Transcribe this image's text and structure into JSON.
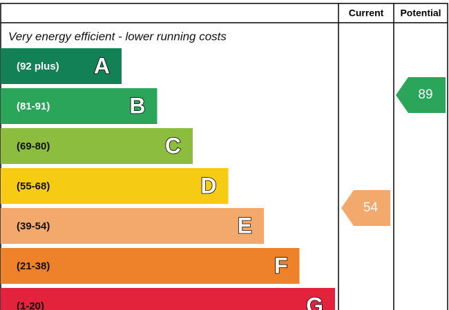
{
  "header": {
    "current": "Current",
    "potential": "Potential"
  },
  "top_note": "Very energy efficient - lower running costs",
  "bands": [
    {
      "range": "(92 plus)",
      "letter": "A",
      "color": "#128256"
    },
    {
      "range": "(81-91)",
      "letter": "B",
      "color": "#2aa55a"
    },
    {
      "range": "(69-80)",
      "letter": "C",
      "color": "#8dbd3f"
    },
    {
      "range": "(55-68)",
      "letter": "D",
      "color": "#f5cb13"
    },
    {
      "range": "(39-54)",
      "letter": "E",
      "color": "#f2a96b"
    },
    {
      "range": "(21-38)",
      "letter": "F",
      "color": "#ee822a"
    },
    {
      "range": "(1-20)",
      "letter": "G",
      "color": "#e3223c"
    }
  ],
  "current": {
    "value": 54,
    "band": 4
  },
  "potential": {
    "value": 89,
    "band": 1
  }
}
